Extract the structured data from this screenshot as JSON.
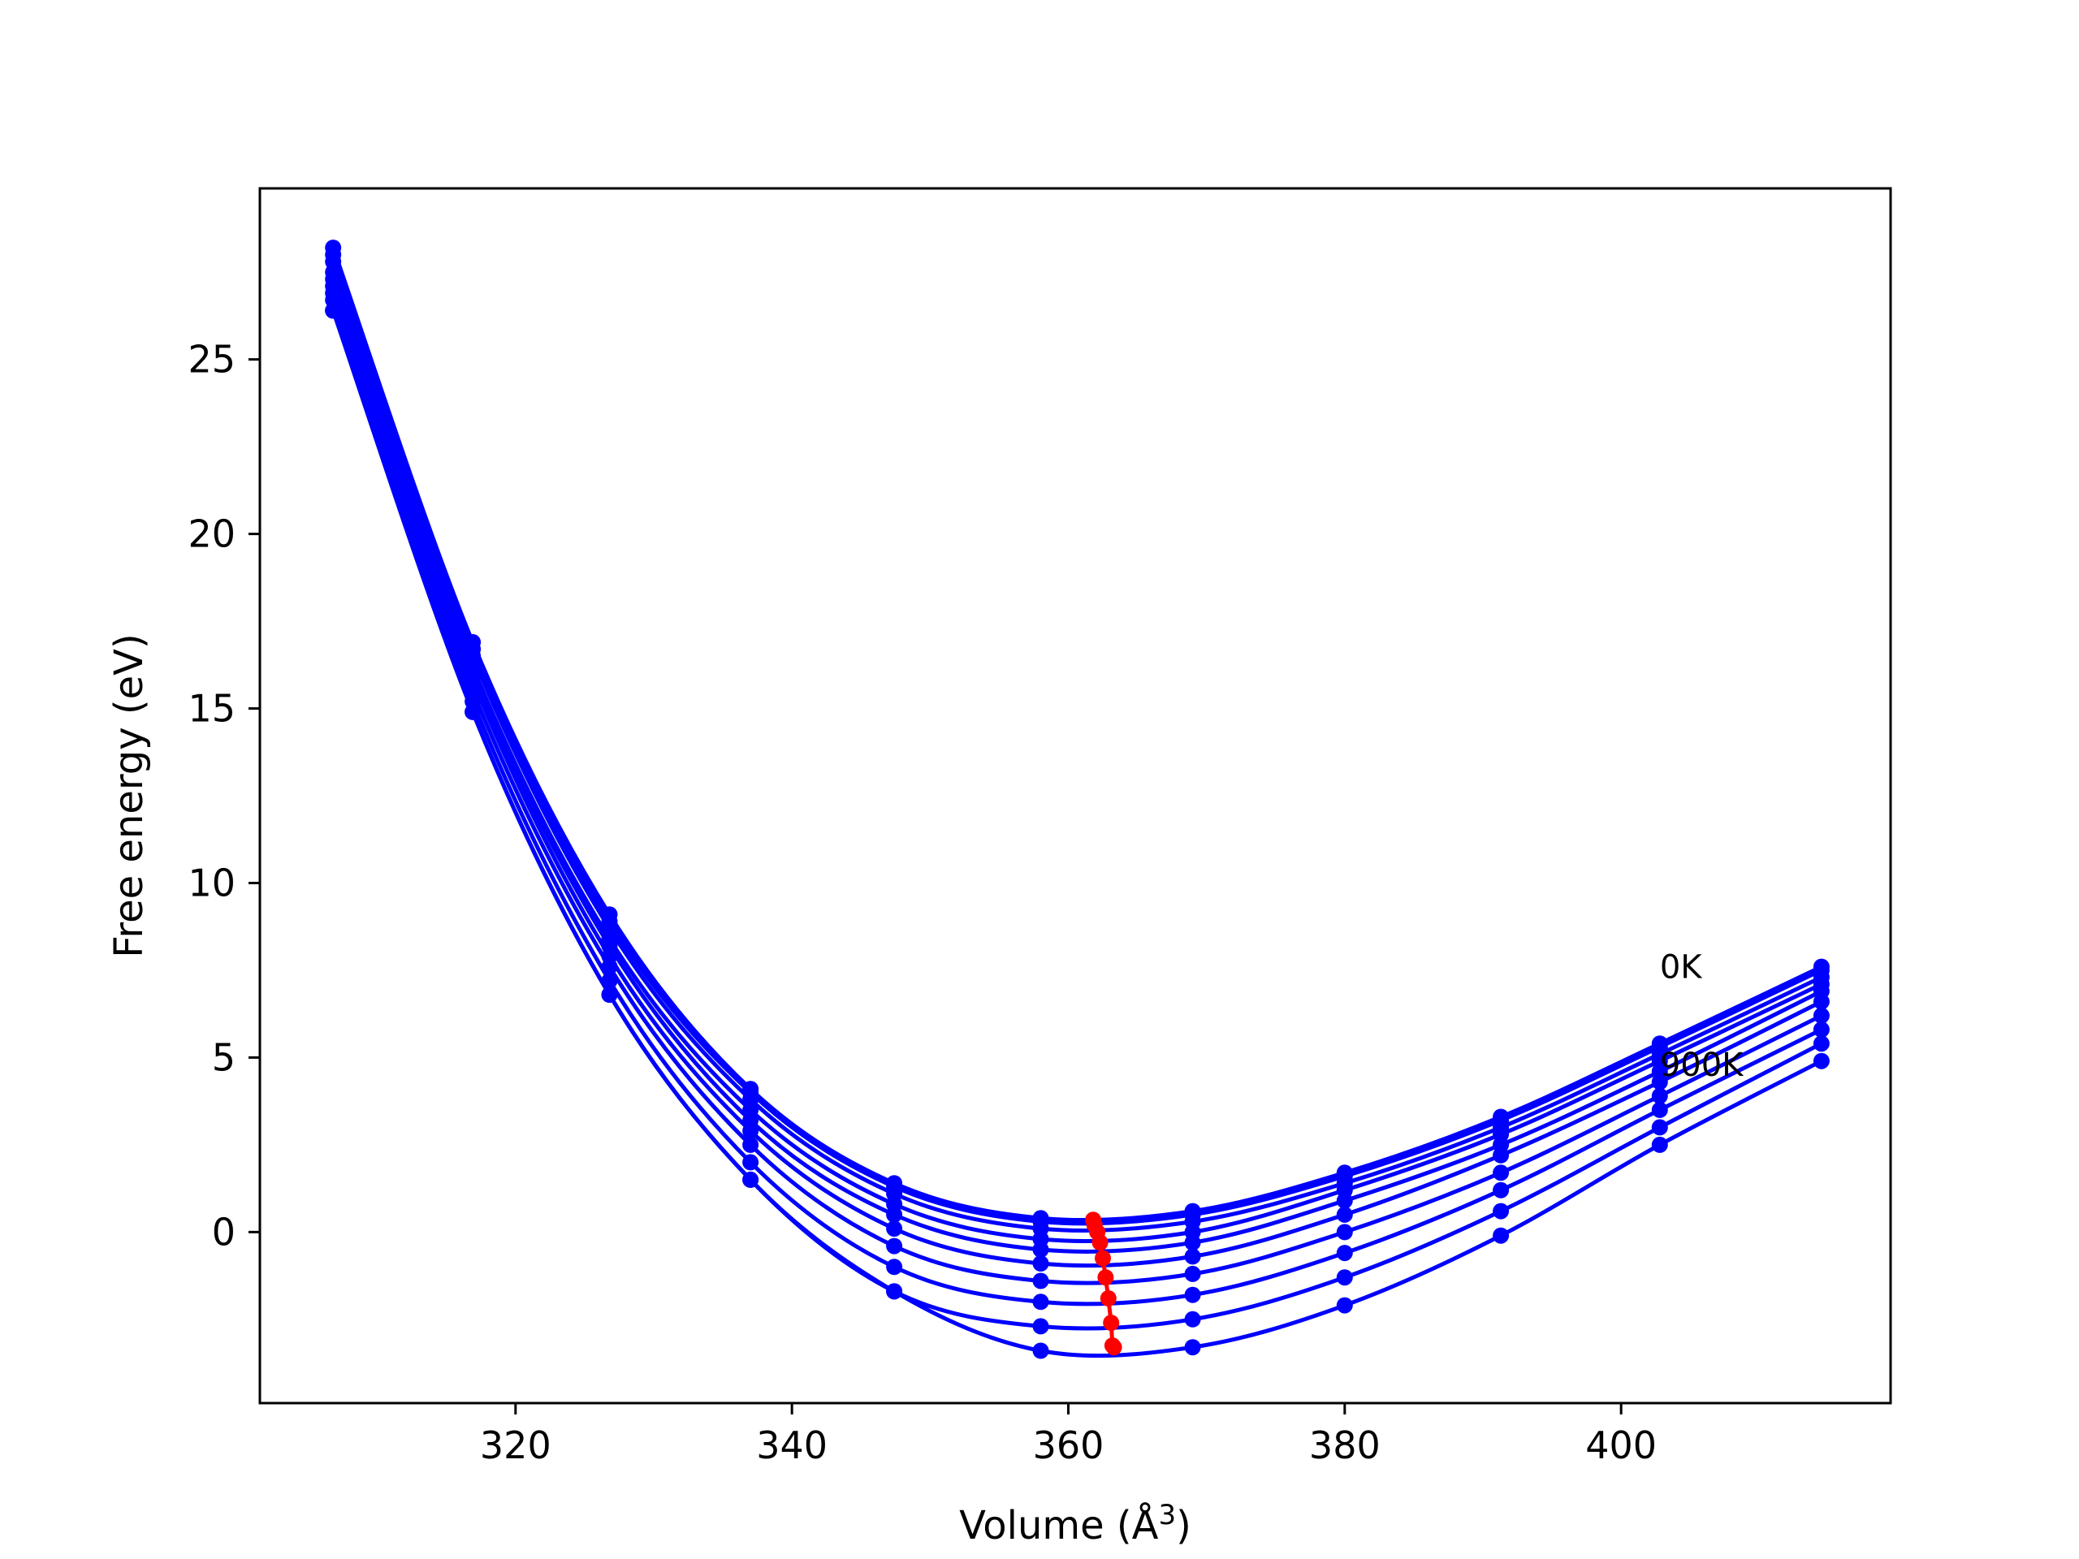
{
  "chart_data": {
    "type": "line",
    "title": "",
    "xlabel": "Volume (Å",
    "xlabel_sup": "3",
    "xlabel_close": ")",
    "ylabel": "Free energy (eV)",
    "xlim": [
      301.5,
      419.5
    ],
    "ylim": [
      -4.9,
      29.9
    ],
    "x_ticks": [
      320,
      340,
      360,
      380,
      400
    ],
    "y_ticks": [
      0,
      5,
      10,
      15,
      20,
      25
    ],
    "grid": false,
    "legend": "none",
    "colors": {
      "curves": "#0000ff",
      "minima": "#ff0000",
      "frame": "#000000"
    },
    "annotations": [
      {
        "text": "0K",
        "x": 402.8,
        "y": 7.6
      },
      {
        "text": "900K",
        "x": 402.8,
        "y": 4.8
      }
    ],
    "volumes": [
      306.8,
      316.9,
      326.8,
      337.0,
      347.4,
      358.0,
      369.0,
      380.0,
      391.3,
      402.8,
      414.5
    ],
    "series": [
      {
        "values": [
          28.2,
          16.9,
          9.1,
          4.1,
          1.4,
          0.4,
          0.6,
          1.7,
          3.3,
          5.4,
          7.6
        ],
        "min_x": 361.8,
        "min_y": 0.35
      },
      {
        "values": [
          28.0,
          16.7,
          8.9,
          4.0,
          1.3,
          0.3,
          0.5,
          1.6,
          3.2,
          5.3,
          7.5
        ],
        "min_x": 361.9,
        "min_y": 0.2
      },
      {
        "values": [
          27.8,
          16.5,
          8.7,
          3.8,
          1.1,
          0.1,
          0.3,
          1.4,
          3.0,
          5.1,
          7.3
        ],
        "min_x": 362.1,
        "min_y": 0.0
      },
      {
        "values": [
          27.5,
          16.2,
          8.4,
          3.5,
          0.8,
          -0.2,
          0.0,
          1.2,
          2.8,
          4.9,
          7.1
        ],
        "min_x": 362.3,
        "min_y": -0.3
      },
      {
        "values": [
          27.3,
          16.0,
          8.2,
          3.2,
          0.5,
          -0.5,
          -0.3,
          0.9,
          2.5,
          4.6,
          6.9
        ],
        "min_x": 362.5,
        "min_y": -0.75
      },
      {
        "values": [
          27.1,
          15.8,
          7.9,
          2.9,
          0.1,
          -0.9,
          -0.7,
          0.5,
          2.2,
          4.3,
          6.6
        ],
        "min_x": 362.7,
        "min_y": -1.3
      },
      {
        "values": [
          26.9,
          15.5,
          7.6,
          2.5,
          -0.4,
          -1.4,
          -1.2,
          0.0,
          1.7,
          3.9,
          6.2
        ],
        "min_x": 362.9,
        "min_y": -1.9
      },
      {
        "values": [
          26.7,
          15.2,
          7.2,
          2.0,
          -1.0,
          -2.0,
          -1.8,
          -0.6,
          1.2,
          3.5,
          5.8
        ],
        "min_x": 363.1,
        "min_y": -2.6
      },
      {
        "values": [
          26.4,
          14.9,
          6.8,
          1.5,
          -1.7,
          -2.7,
          -2.5,
          -1.3,
          0.6,
          3.0,
          5.4
        ],
        "min_x": 363.2,
        "min_y": -3.25
      },
      {
        "values": [
          26.4,
          14.9,
          6.8,
          1.5,
          -1.7,
          -3.4,
          -3.3,
          -2.1,
          -0.1,
          2.5,
          4.9
        ],
        "min_x": 363.3,
        "min_y": -3.3
      }
    ]
  }
}
